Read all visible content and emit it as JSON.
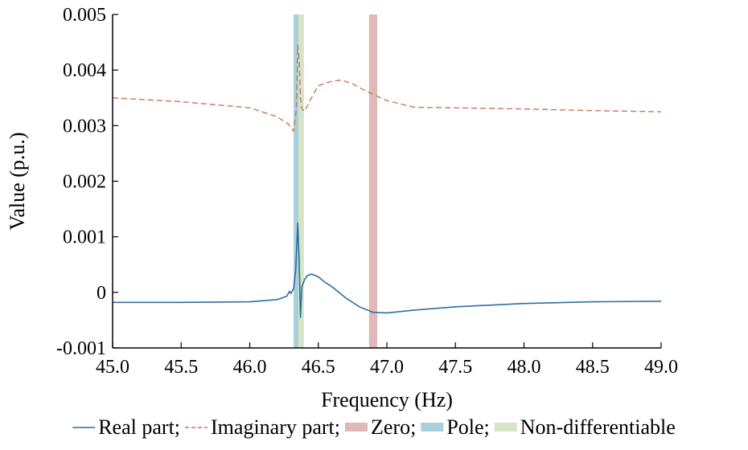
{
  "chart_data": {
    "type": "line",
    "title": "",
    "xlabel": "Frequency (Hz)",
    "ylabel": "Value (p.u.)",
    "xlim": [
      45.0,
      49.0
    ],
    "ylim": [
      -0.001,
      0.005
    ],
    "xticks": [
      "45.0",
      "45.5",
      "46.0",
      "46.5",
      "47.0",
      "47.5",
      "48.0",
      "48.5",
      "49.0"
    ],
    "yticks": [
      "-0.001",
      "0",
      "0.001",
      "0.002",
      "0.003",
      "0.004",
      "0.005"
    ],
    "grid": false,
    "legend_position": "bottom",
    "series": [
      {
        "name": "Real part;",
        "style": "solid",
        "color": "#2e6f9e",
        "x": [
          45.0,
          45.5,
          46.0,
          46.2,
          46.27,
          46.29,
          46.3,
          46.32,
          46.335,
          46.35,
          46.36,
          46.37,
          46.38,
          46.4,
          46.42,
          46.45,
          46.5,
          46.55,
          46.6,
          46.7,
          46.8,
          46.9,
          47.0,
          47.2,
          47.5,
          48.0,
          48.5,
          49.0
        ],
        "y": [
          -0.00018,
          -0.00018,
          -0.00017,
          -0.00013,
          -7e-05,
          2e-05,
          -2e-05,
          7e-05,
          0.0004,
          0.00125,
          0.0006,
          -0.00045,
          0.0001,
          0.00023,
          0.0003,
          0.00033,
          0.00028,
          0.00018,
          0.0001,
          -0.0001,
          -0.00026,
          -0.00036,
          -0.00037,
          -0.00032,
          -0.00026,
          -0.0002,
          -0.00017,
          -0.00016
        ]
      },
      {
        "name": "Imaginary part;",
        "style": "dashed",
        "color": "#c9785a",
        "x": [
          45.0,
          45.5,
          46.0,
          46.2,
          46.28,
          46.32,
          46.34,
          46.35,
          46.36,
          46.37,
          46.38,
          46.4,
          46.45,
          46.5,
          46.6,
          46.67,
          46.75,
          46.85,
          47.0,
          47.2,
          47.5,
          48.0,
          48.5,
          49.0
        ],
        "y": [
          0.0035,
          0.00343,
          0.00332,
          0.00316,
          0.00303,
          0.0029,
          0.0033,
          0.00445,
          0.0042,
          0.0035,
          0.0033,
          0.00326,
          0.0035,
          0.00372,
          0.0038,
          0.00382,
          0.00375,
          0.00362,
          0.00345,
          0.00333,
          0.00332,
          0.0033,
          0.00327,
          0.00325
        ]
      }
    ],
    "bands": [
      {
        "name": "Zero;",
        "x0": 46.87,
        "x1": 46.93,
        "color": "#dfb8b8"
      },
      {
        "name": "Pole;",
        "x0": 46.32,
        "x1": 46.355,
        "color": "#a7d0da"
      },
      {
        "name": "Non-differentiable",
        "x0": 46.355,
        "x1": 46.395,
        "color": "#d7e4c6"
      }
    ]
  }
}
